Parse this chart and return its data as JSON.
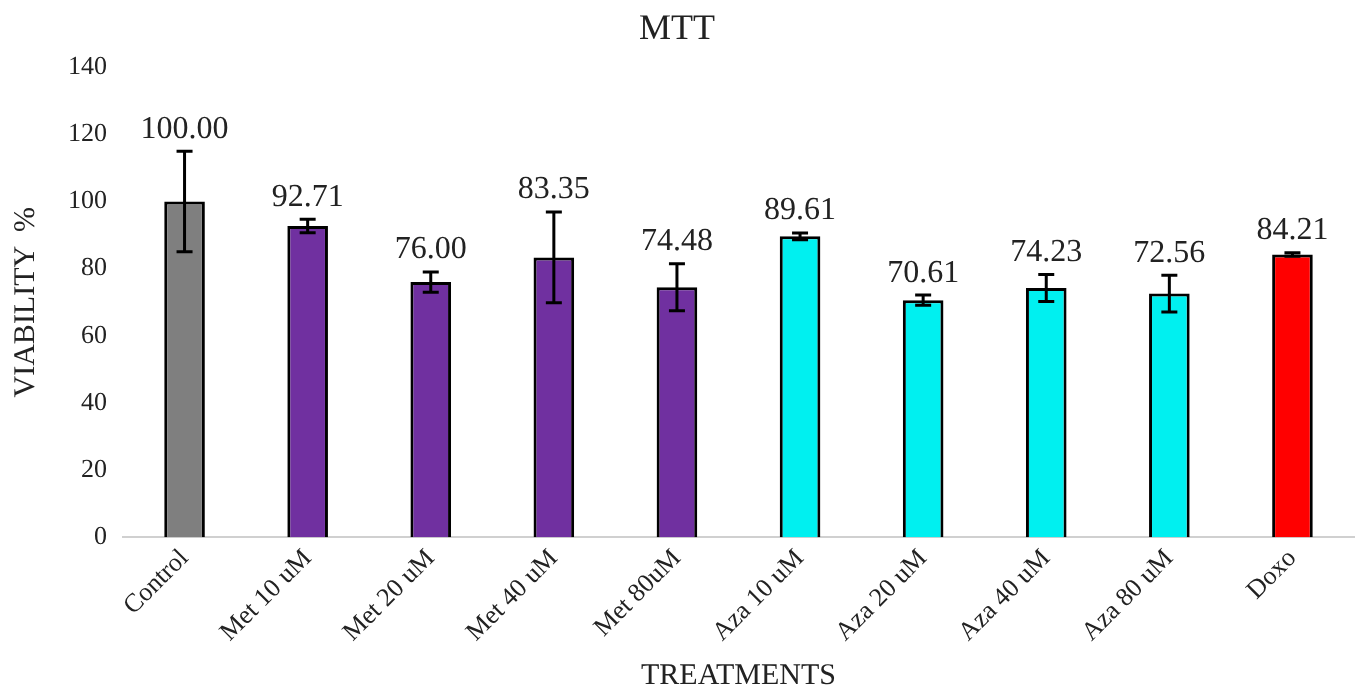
{
  "chart_data": {
    "type": "bar",
    "title": "MTT",
    "xlabel": "TREATMENTS",
    "ylabel": "VIABILITY  %",
    "categories": [
      "Control",
      "Met 10 uM",
      "Met 20 uM",
      "Met 40 uM",
      "Met 80uM",
      "Aza 10 uM",
      "Aza 20 uM",
      "Aza 40 uM",
      "Aza 80 uM",
      "Doxo"
    ],
    "values": [
      100.0,
      92.71,
      76.0,
      83.35,
      74.48,
      89.61,
      70.61,
      74.23,
      72.56,
      84.21
    ],
    "errors": [
      15,
      2,
      3,
      13.5,
      7,
      1,
      1.5,
      4,
      5.5,
      0.5
    ],
    "value_labels": [
      "100.00",
      "92.71",
      "76.00",
      "83.35",
      "74.48",
      "89.61",
      "70.61",
      "74.23",
      "72.56",
      "84.21"
    ],
    "colors": [
      "#7f7f7f",
      "#7030a0",
      "#7030a0",
      "#7030a0",
      "#7030a0",
      "#00f0f0",
      "#00f0f0",
      "#00f0f0",
      "#00f0f0",
      "#ff0000"
    ],
    "ylim": [
      0,
      140
    ],
    "yticks": [
      0,
      20,
      40,
      60,
      80,
      100,
      120,
      140
    ],
    "grid": false,
    "legend": false
  }
}
